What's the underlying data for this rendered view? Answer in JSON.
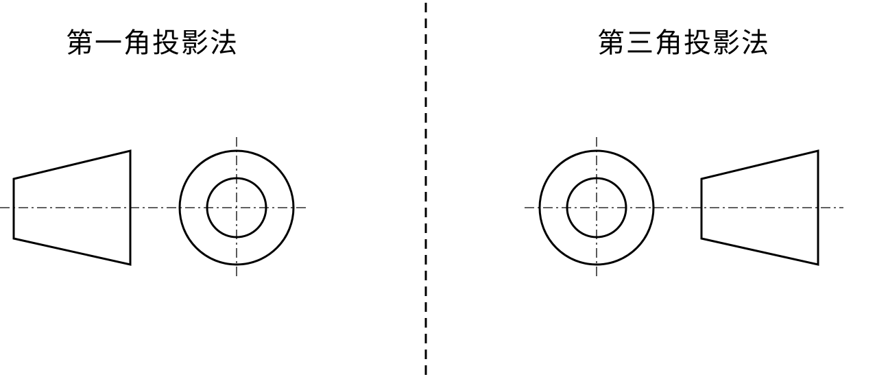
{
  "diagram": {
    "left_title": "第一角投影法",
    "right_title": "第三角投影法"
  },
  "colors": {
    "line": "#000000",
    "background": "#ffffff"
  }
}
